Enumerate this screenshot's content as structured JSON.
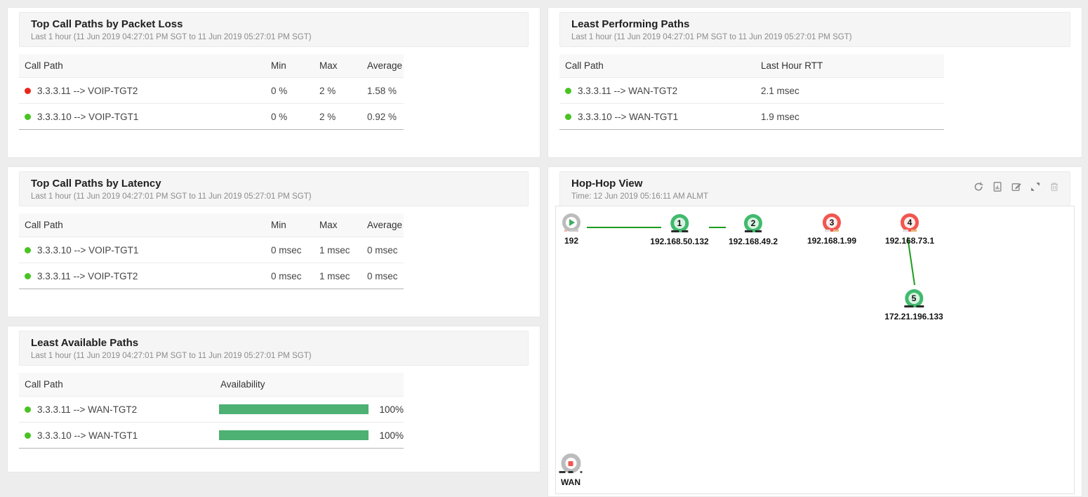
{
  "colors": {
    "status_up": "#47c421",
    "status_down": "#e8271a",
    "node_up_ring": "#41ba6e",
    "node_down_ring": "#f2564f",
    "link_green": "#1d9b1d",
    "availability_bar": "#4cb173"
  },
  "panels": {
    "packet_loss": {
      "title": "Top Call Paths by Packet Loss",
      "subtitle": "Last 1 hour (11 Jun 2019 04:27:01 PM SGT to 11 Jun 2019 05:27:01 PM SGT)",
      "columns": {
        "path": "Call Path",
        "min": "Min",
        "max": "Max",
        "avg": "Average"
      },
      "rows": [
        {
          "status": "down",
          "path": "3.3.3.11 --> VOIP-TGT2",
          "min": "0 %",
          "max": "2 %",
          "avg": "1.58 %"
        },
        {
          "status": "up",
          "path": "3.3.3.10 --> VOIP-TGT1",
          "min": "0 %",
          "max": "2 %",
          "avg": "0.92 %"
        }
      ]
    },
    "least_performing": {
      "title": "Least Performing Paths",
      "subtitle": "Last 1 hour (11 Jun 2019 04:27:01 PM SGT to 11 Jun 2019 05:27:01 PM SGT)",
      "columns": {
        "path": "Call Path",
        "rtt": "Last Hour RTT"
      },
      "rows": [
        {
          "status": "up",
          "path": "3.3.3.11 --> WAN-TGT2",
          "rtt": "2.1 msec"
        },
        {
          "status": "up",
          "path": "3.3.3.10 --> WAN-TGT1",
          "rtt": "1.9 msec"
        }
      ]
    },
    "latency": {
      "title": "Top Call Paths by Latency",
      "subtitle": "Last 1 hour (11 Jun 2019 04:27:01 PM SGT to 11 Jun 2019 05:27:01 PM SGT)",
      "columns": {
        "path": "Call Path",
        "min": "Min",
        "max": "Max",
        "avg": "Average"
      },
      "rows": [
        {
          "status": "up",
          "path": "3.3.3.10 --> VOIP-TGT1",
          "min": "0 msec",
          "max": "1 msec",
          "avg": "0 msec"
        },
        {
          "status": "up",
          "path": "3.3.3.11 --> VOIP-TGT2",
          "min": "0 msec",
          "max": "1 msec",
          "avg": "0 msec"
        }
      ]
    },
    "least_available": {
      "title": "Least Available Paths",
      "subtitle": "Last 1 hour (11 Jun 2019 04:27:01 PM SGT to 11 Jun 2019 05:27:01 PM SGT)",
      "columns": {
        "path": "Call Path",
        "availability": "Availability"
      },
      "rows": [
        {
          "status": "up",
          "path": "3.3.3.11 --> WAN-TGT2",
          "pct": 100,
          "pct_label": "100%"
        },
        {
          "status": "up",
          "path": "3.3.3.10 --> WAN-TGT1",
          "pct": 100,
          "pct_label": "100%"
        }
      ]
    },
    "hop_hop": {
      "title": "Hop-Hop View",
      "subtitle": "Time: 12 Jun 2019 05:16:11 AM ALMT",
      "toolbar": [
        "refresh-icon",
        "report-icon",
        "edit-icon",
        "resize-icon",
        "delete-icon"
      ],
      "source": {
        "label": "192"
      },
      "hops": [
        {
          "num": "1",
          "label": "192.168.50.132",
          "status": "up"
        },
        {
          "num": "2",
          "label": "192.168.49.2",
          "status": "up"
        },
        {
          "num": "3",
          "label": "192.168.1.99",
          "status": "down"
        },
        {
          "num": "4",
          "label": "192.168.73.1",
          "status": "down"
        },
        {
          "num": "5",
          "label": "172.21.196.133",
          "status": "up"
        }
      ],
      "destination": {
        "label": "WAN"
      }
    }
  }
}
